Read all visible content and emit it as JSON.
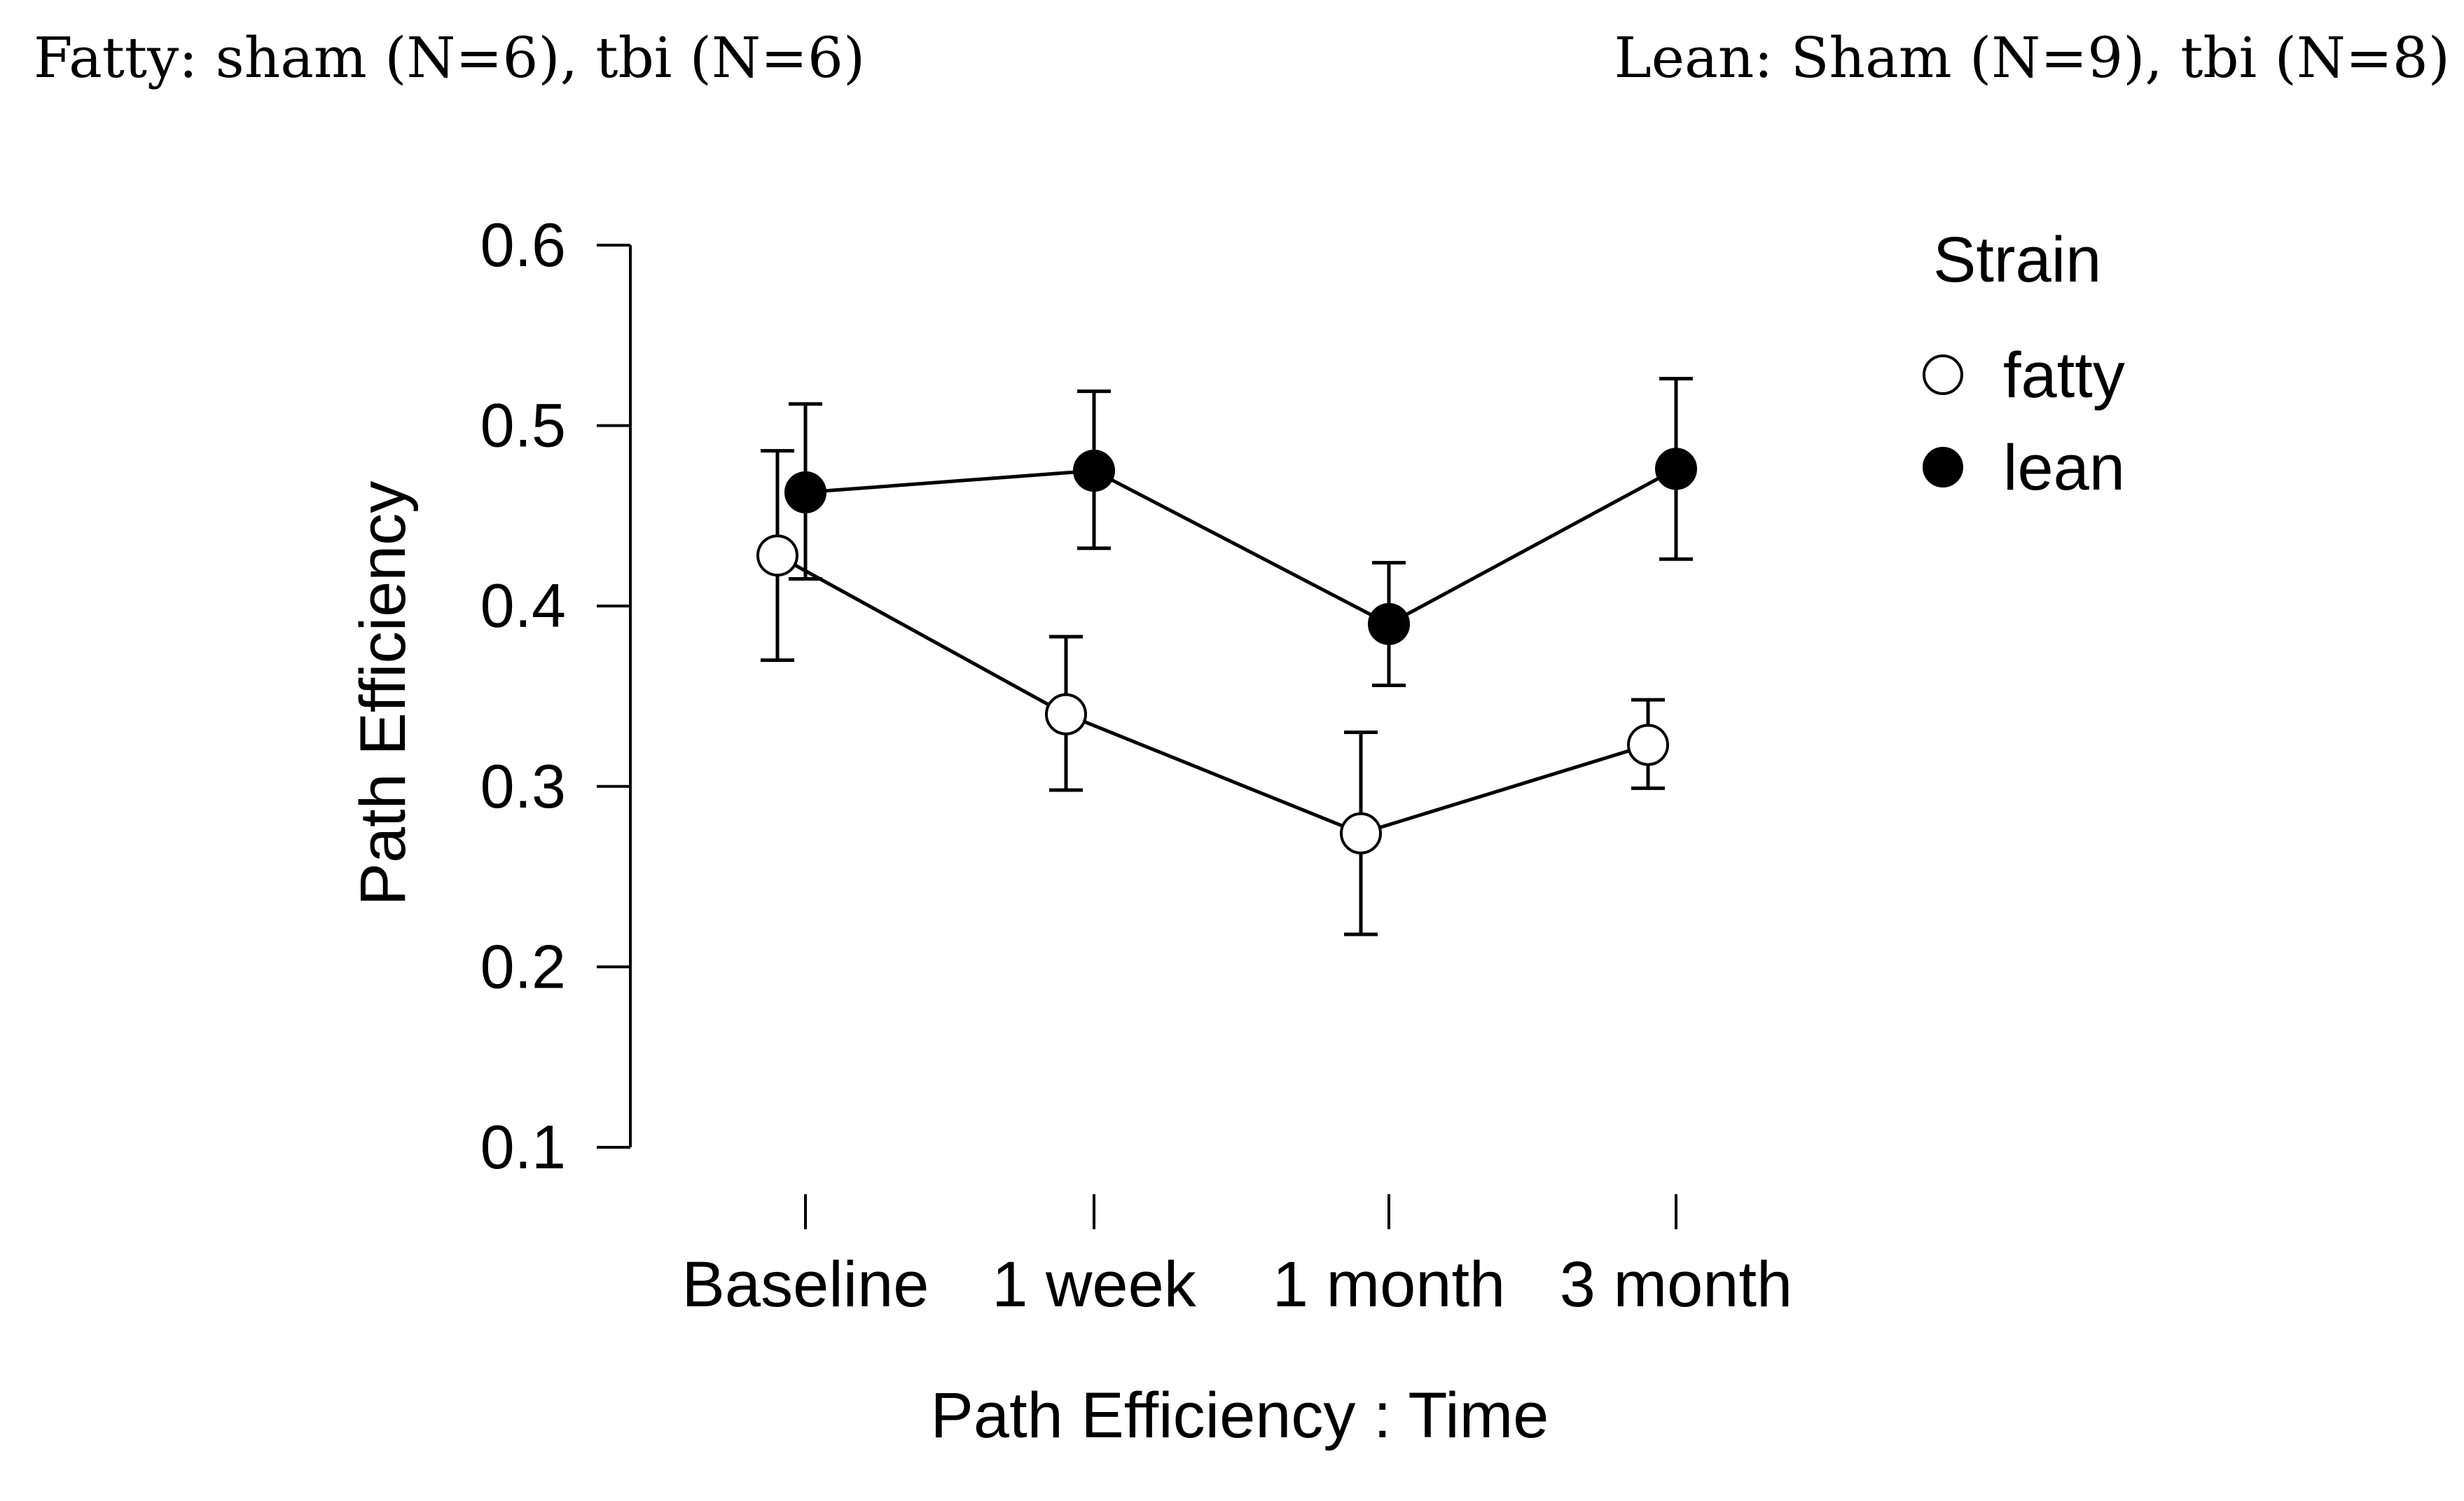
{
  "captions": {
    "left": "Fatty: sham (N=6), tbi (N=6)",
    "right": "Lean: Sham (N=9), tbi (N=8)"
  },
  "chart_data": {
    "type": "line",
    "title": "",
    "xlabel": "Path Efficiency : Time",
    "ylabel": "Path Efficiency",
    "categories": [
      "Baseline",
      "1 week",
      "1 month",
      "3 month"
    ],
    "ylim": [
      0.1,
      0.6
    ],
    "yticks": [
      "0.1",
      "0.2",
      "0.3",
      "0.4",
      "0.5",
      "0.6"
    ],
    "grid": false,
    "legend": {
      "title": "Strain",
      "position": "top-right"
    },
    "series": [
      {
        "name": "fatty",
        "marker": "open-circle",
        "color": "#000000",
        "values": [
          0.428,
          0.34,
          0.274,
          0.323
        ],
        "error_low": [
          0.37,
          0.298,
          0.218,
          0.299
        ],
        "error_high": [
          0.486,
          0.383,
          0.33,
          0.348
        ]
      },
      {
        "name": "lean",
        "marker": "filled-circle",
        "color": "#000000",
        "values": [
          0.463,
          0.475,
          0.39,
          0.476
        ],
        "error_low": [
          0.415,
          0.432,
          0.356,
          0.426
        ],
        "error_high": [
          0.512,
          0.519,
          0.424,
          0.526
        ]
      }
    ]
  }
}
